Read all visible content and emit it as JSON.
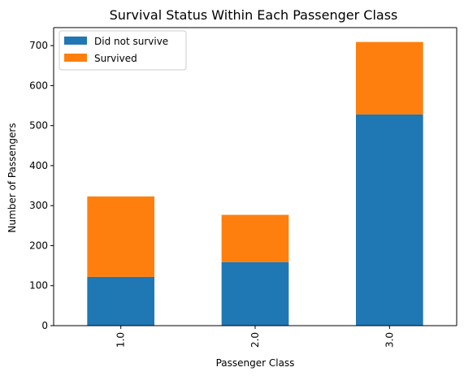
{
  "chart_data": {
    "type": "bar",
    "stacked": true,
    "title": "Survival Status Within Each Passenger Class",
    "xlabel": "Passenger Class",
    "ylabel": "Number of Passengers",
    "categories": [
      "1.0",
      "2.0",
      "3.0"
    ],
    "series": [
      {
        "name": "Did not survive",
        "values": [
          122,
          159,
          528
        ],
        "color": "#1f77b4"
      },
      {
        "name": "Survived",
        "values": [
          201,
          118,
          181
        ],
        "color": "#ff7f0e"
      }
    ],
    "ylim": [
      0,
      745
    ],
    "yticks": [
      0,
      100,
      200,
      300,
      400,
      500,
      600,
      700
    ],
    "grid": false,
    "legend": "top-left"
  }
}
